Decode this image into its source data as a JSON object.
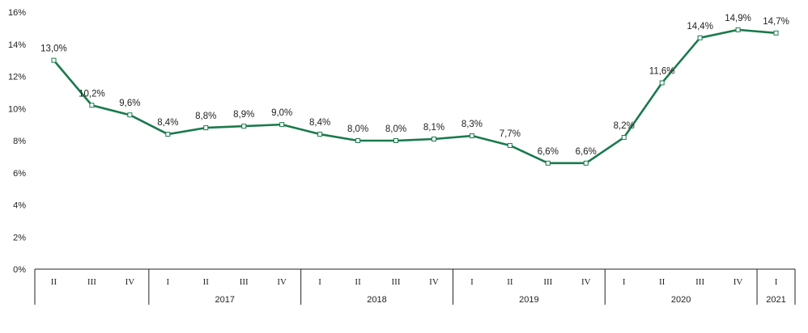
{
  "chart_data": {
    "type": "line",
    "ylim": [
      0,
      16
    ],
    "y_ticks": [
      "0%",
      "2%",
      "4%",
      "6%",
      "8%",
      "10%",
      "12%",
      "14%",
      "16%"
    ],
    "grid": false,
    "line_color": "#1a7a4c",
    "quarters": [
      "II",
      "III",
      "IV",
      "I",
      "II",
      "III",
      "IV",
      "I",
      "II",
      "III",
      "IV",
      "I",
      "II",
      "III",
      "IV",
      "I",
      "II",
      "III",
      "IV",
      "I"
    ],
    "years": [
      {
        "label": "",
        "start": 0,
        "end": 2
      },
      {
        "label": "2017",
        "start": 3,
        "end": 6
      },
      {
        "label": "2018",
        "start": 7,
        "end": 10
      },
      {
        "label": "2019",
        "start": 11,
        "end": 14
      },
      {
        "label": "2020",
        "start": 15,
        "end": 18
      },
      {
        "label": "2021",
        "start": 19,
        "end": 19
      }
    ],
    "values": [
      13.0,
      10.2,
      9.6,
      8.4,
      8.8,
      8.9,
      9.0,
      8.4,
      8.0,
      8.0,
      8.1,
      8.3,
      7.7,
      6.6,
      6.6,
      8.2,
      11.6,
      14.4,
      14.9,
      14.7
    ],
    "data_labels": [
      "13,0%",
      "10,2%",
      "9,6%",
      "8,4%",
      "8,8%",
      "8,9%",
      "9,0%",
      "8,4%",
      "8,0%",
      "8,0%",
      "8,1%",
      "8,3%",
      "7,7%",
      "6,6%",
      "6,6%",
      "8,2%",
      "11,6%",
      "14,4%",
      "14,9%",
      "14,7%"
    ]
  }
}
